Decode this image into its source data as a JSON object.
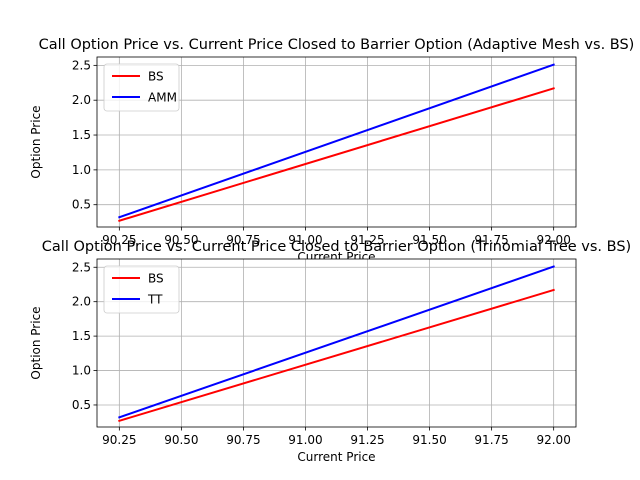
{
  "figure": {
    "background": "#ffffff",
    "grid_color": "#b0b0b0",
    "frame_color": "#000000",
    "legend_border_color": "#cccccc"
  },
  "chart_data": [
    {
      "type": "line",
      "title": "Call Option Price vs. Current Price Closed to Barrier Option (Adaptive Mesh vs. BS)",
      "xlabel": "Current Price",
      "ylabel": "Option Price",
      "xlim": [
        90.16,
        92.09
      ],
      "ylim": [
        0.18,
        2.62
      ],
      "xticks": [
        90.25,
        90.5,
        90.75,
        91.0,
        91.25,
        91.5,
        91.75,
        92.0
      ],
      "xtick_labels": [
        "90.25",
        "90.50",
        "90.75",
        "91.00",
        "91.25",
        "91.50",
        "91.75",
        "92.00"
      ],
      "yticks": [
        0.5,
        1.0,
        1.5,
        2.0,
        2.5
      ],
      "ytick_labels": [
        "0.5",
        "1.0",
        "1.5",
        "2.0",
        "2.5"
      ],
      "grid": true,
      "legend": "upper-left",
      "x": [
        90.25,
        92.0
      ],
      "series": [
        {
          "name": "BS",
          "color": "#ff0000",
          "values": [
            0.27,
            2.17
          ]
        },
        {
          "name": "AMM",
          "color": "#0000ff",
          "values": [
            0.32,
            2.51
          ]
        }
      ]
    },
    {
      "type": "line",
      "title": "Call Option Price vs. Current Price Closed to Barrier Option (Trinomial Tree vs. BS)",
      "xlabel": "Current Price",
      "ylabel": "Option Price",
      "xlim": [
        90.16,
        92.09
      ],
      "ylim": [
        0.18,
        2.62
      ],
      "xticks": [
        90.25,
        90.5,
        90.75,
        91.0,
        91.25,
        91.5,
        91.75,
        92.0
      ],
      "xtick_labels": [
        "90.25",
        "90.50",
        "90.75",
        "91.00",
        "91.25",
        "91.50",
        "91.75",
        "92.00"
      ],
      "yticks": [
        0.5,
        1.0,
        1.5,
        2.0,
        2.5
      ],
      "ytick_labels": [
        "0.5",
        "1.0",
        "1.5",
        "2.0",
        "2.5"
      ],
      "grid": true,
      "legend": "upper-left",
      "x": [
        90.25,
        92.0
      ],
      "series": [
        {
          "name": "BS",
          "color": "#ff0000",
          "values": [
            0.27,
            2.17
          ]
        },
        {
          "name": "TT",
          "color": "#0000ff",
          "values": [
            0.32,
            2.51
          ]
        }
      ]
    }
  ]
}
